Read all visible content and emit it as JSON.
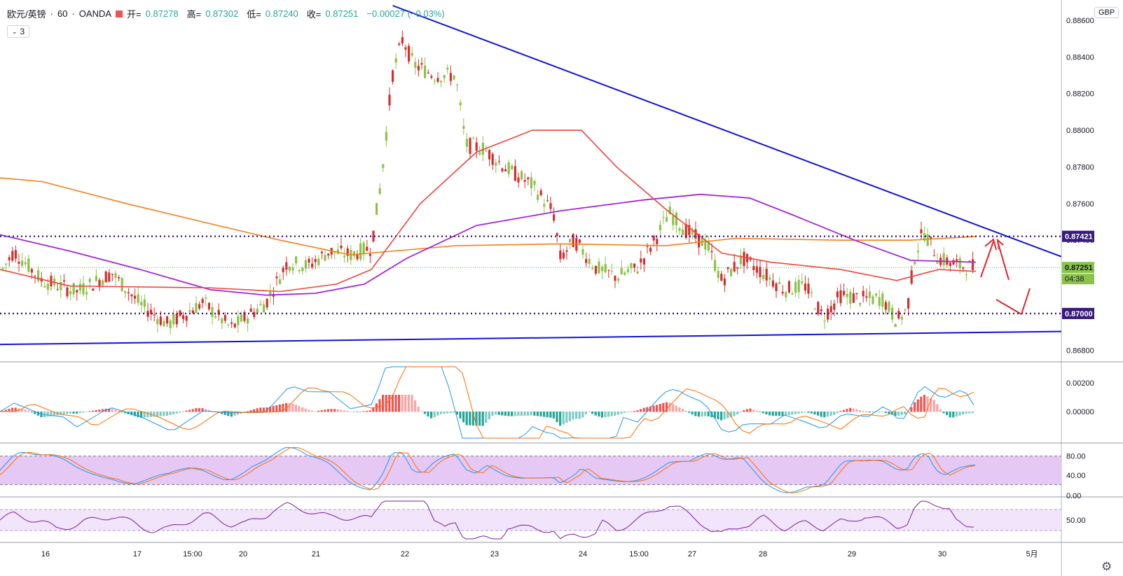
{
  "header": {
    "symbol": "欧元/英镑",
    "separator": "·",
    "interval": "60",
    "broker": "OANDA",
    "open_label": "开=",
    "open": "0.87278",
    "high_label": "高=",
    "high": "0.87302",
    "low_label": "低=",
    "low": "0.87240",
    "close_label": "收=",
    "close": "0.87251",
    "change": "−0.00027 (−0.03%)",
    "indicator_count": "3",
    "currency": "GBP"
  },
  "colors": {
    "up": "#8bc34a",
    "down": "#d32f2f",
    "trendline": "#1212d8",
    "level": "#3a1a7a",
    "ma_red": "#f0453a",
    "ma_purple": "#a226d6",
    "ma_orange": "#f57f17",
    "macd_line": "#2196f3",
    "signal_line": "#ff6d00",
    "rsi_fill": "#e6c8f5",
    "arrow": "#e3242b"
  },
  "chart_data": {
    "type": "candlestick",
    "title": "欧元/英镑 · 60 · OANDA",
    "x_ticks": [
      "16",
      "17",
      "15:00",
      "20",
      "21",
      "22",
      "23",
      "24",
      "15:00",
      "27",
      "28",
      "29",
      "30",
      "5月"
    ],
    "y_ticks": [
      "0.88600",
      "0.88400",
      "0.88200",
      "0.88000",
      "0.87800",
      "0.87600",
      "0.87400",
      "0.87200",
      "0.87000",
      "0.86800"
    ],
    "ylim": [
      0.8674,
      0.8868
    ],
    "price_labels": {
      "upper_level": "0.87421",
      "current": "0.87251",
      "countdown": "04:38",
      "lower_level": "0.87000"
    },
    "horizontal_levels": [
      0.87421,
      0.87
    ],
    "trendlines": [
      {
        "name": "resistance",
        "from": [
          0.37,
          0.8868
        ],
        "to": [
          1.0,
          0.8731
        ]
      },
      {
        "name": "support",
        "from": [
          0.0,
          0.86831
        ],
        "to": [
          1.0,
          0.86902
        ]
      }
    ],
    "macd": {
      "y_ticks": [
        "0.00200",
        "0.00000"
      ]
    },
    "stoch": {
      "y_ticks": [
        "80.00",
        "40.00",
        "0.00"
      ],
      "band": [
        20,
        80
      ]
    },
    "rsi": {
      "y_ticks": [
        "50.00"
      ],
      "band": [
        30,
        70
      ]
    }
  }
}
